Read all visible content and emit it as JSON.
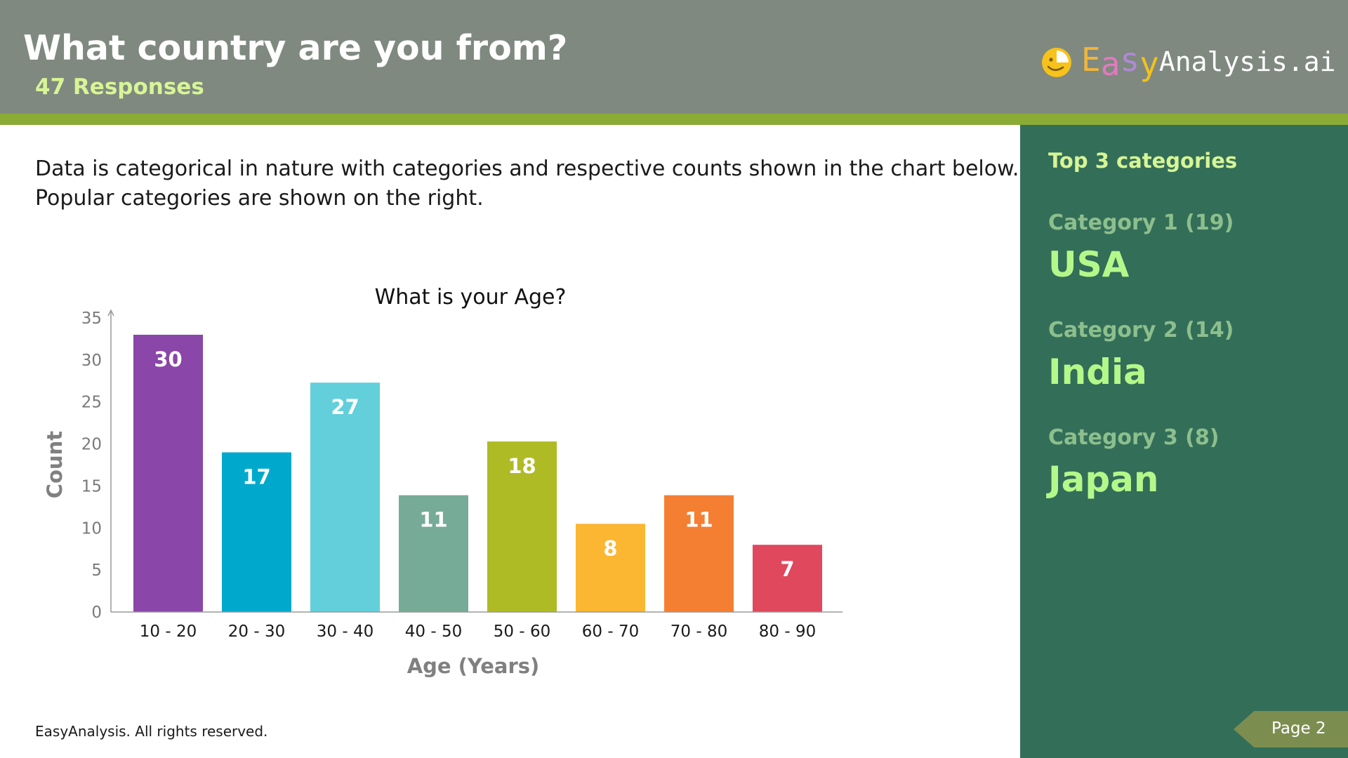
{
  "header": {
    "title": "What country are you from?",
    "subtitle": "47 Responses",
    "logo": {
      "easy_letters": [
        "E",
        "a",
        "s",
        "y"
      ],
      "easy_colors": [
        "#f2b53b",
        "#e27ac0",
        "#b08ad6",
        "#f2c21b"
      ],
      "rest": "Analysis.ai",
      "icon_name": "smiley-pie-logo-icon"
    }
  },
  "description": {
    "line1": "Data is categorical in nature with categories and respective counts shown in the chart below.",
    "line2": "Popular categories are shown on the right."
  },
  "chart_data": {
    "type": "bar",
    "title": "What is your Age?",
    "xlabel": "Age (Years)",
    "ylabel": "Count",
    "categories": [
      "10 - 20",
      "20 - 30",
      "30 - 40",
      "40 - 50",
      "50 - 60",
      "60 - 70",
      "70 - 80",
      "80 - 90"
    ],
    "values": [
      30,
      17,
      27,
      11,
      18,
      8,
      11,
      7
    ],
    "bar_heights": [
      33,
      19,
      27.3,
      13.9,
      20.3,
      10.5,
      13.9,
      8
    ],
    "colors": [
      "#8a46a8",
      "#00a9cc",
      "#62cfdb",
      "#76ab97",
      "#afbb25",
      "#fbb731",
      "#f47f33",
      "#e0485d"
    ],
    "yticks": [
      "0",
      "5",
      "10",
      "15",
      "20",
      "25",
      "30",
      "35"
    ],
    "ylim": [
      0,
      35
    ],
    "grid": false,
    "legend": "none"
  },
  "sidebar": {
    "title": "Top 3 categories",
    "categories": [
      {
        "label": "Category 1 (19)",
        "value": "USA"
      },
      {
        "label": "Category 2 (14)",
        "value": "India"
      },
      {
        "label": "Category 3 (8)",
        "value": "Japan"
      }
    ]
  },
  "footer": {
    "text": "EasyAnalysis. All rights reserved.",
    "page": "Page 2"
  }
}
